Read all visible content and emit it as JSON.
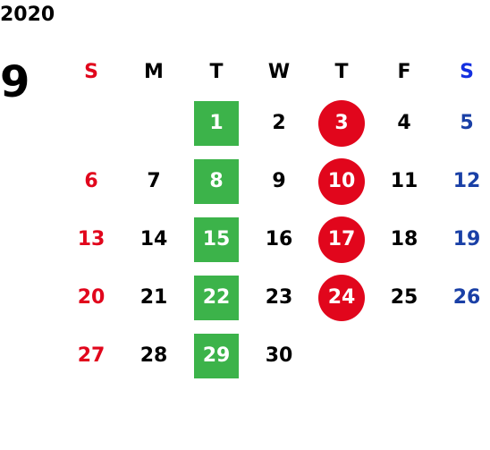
{
  "year": "2020",
  "month": "9",
  "weekdays": [
    "S",
    "M",
    "T",
    "W",
    "T",
    "F",
    "S"
  ],
  "weeks": [
    [
      "",
      "",
      "1",
      "2",
      "3",
      "4",
      "5"
    ],
    [
      "6",
      "7",
      "8",
      "9",
      "10",
      "11",
      "12"
    ],
    [
      "13",
      "14",
      "15",
      "16",
      "17",
      "18",
      "19"
    ],
    [
      "20",
      "21",
      "22",
      "23",
      "24",
      "25",
      "26"
    ],
    [
      "27",
      "28",
      "29",
      "30",
      "",
      "",
      ""
    ]
  ],
  "colors": {
    "sunday": "#e1061c",
    "saturday": "#1a40a6",
    "saturday_header": "#1430e0",
    "green_highlight": "#3cb34a",
    "red_highlight": "#e1061c"
  }
}
